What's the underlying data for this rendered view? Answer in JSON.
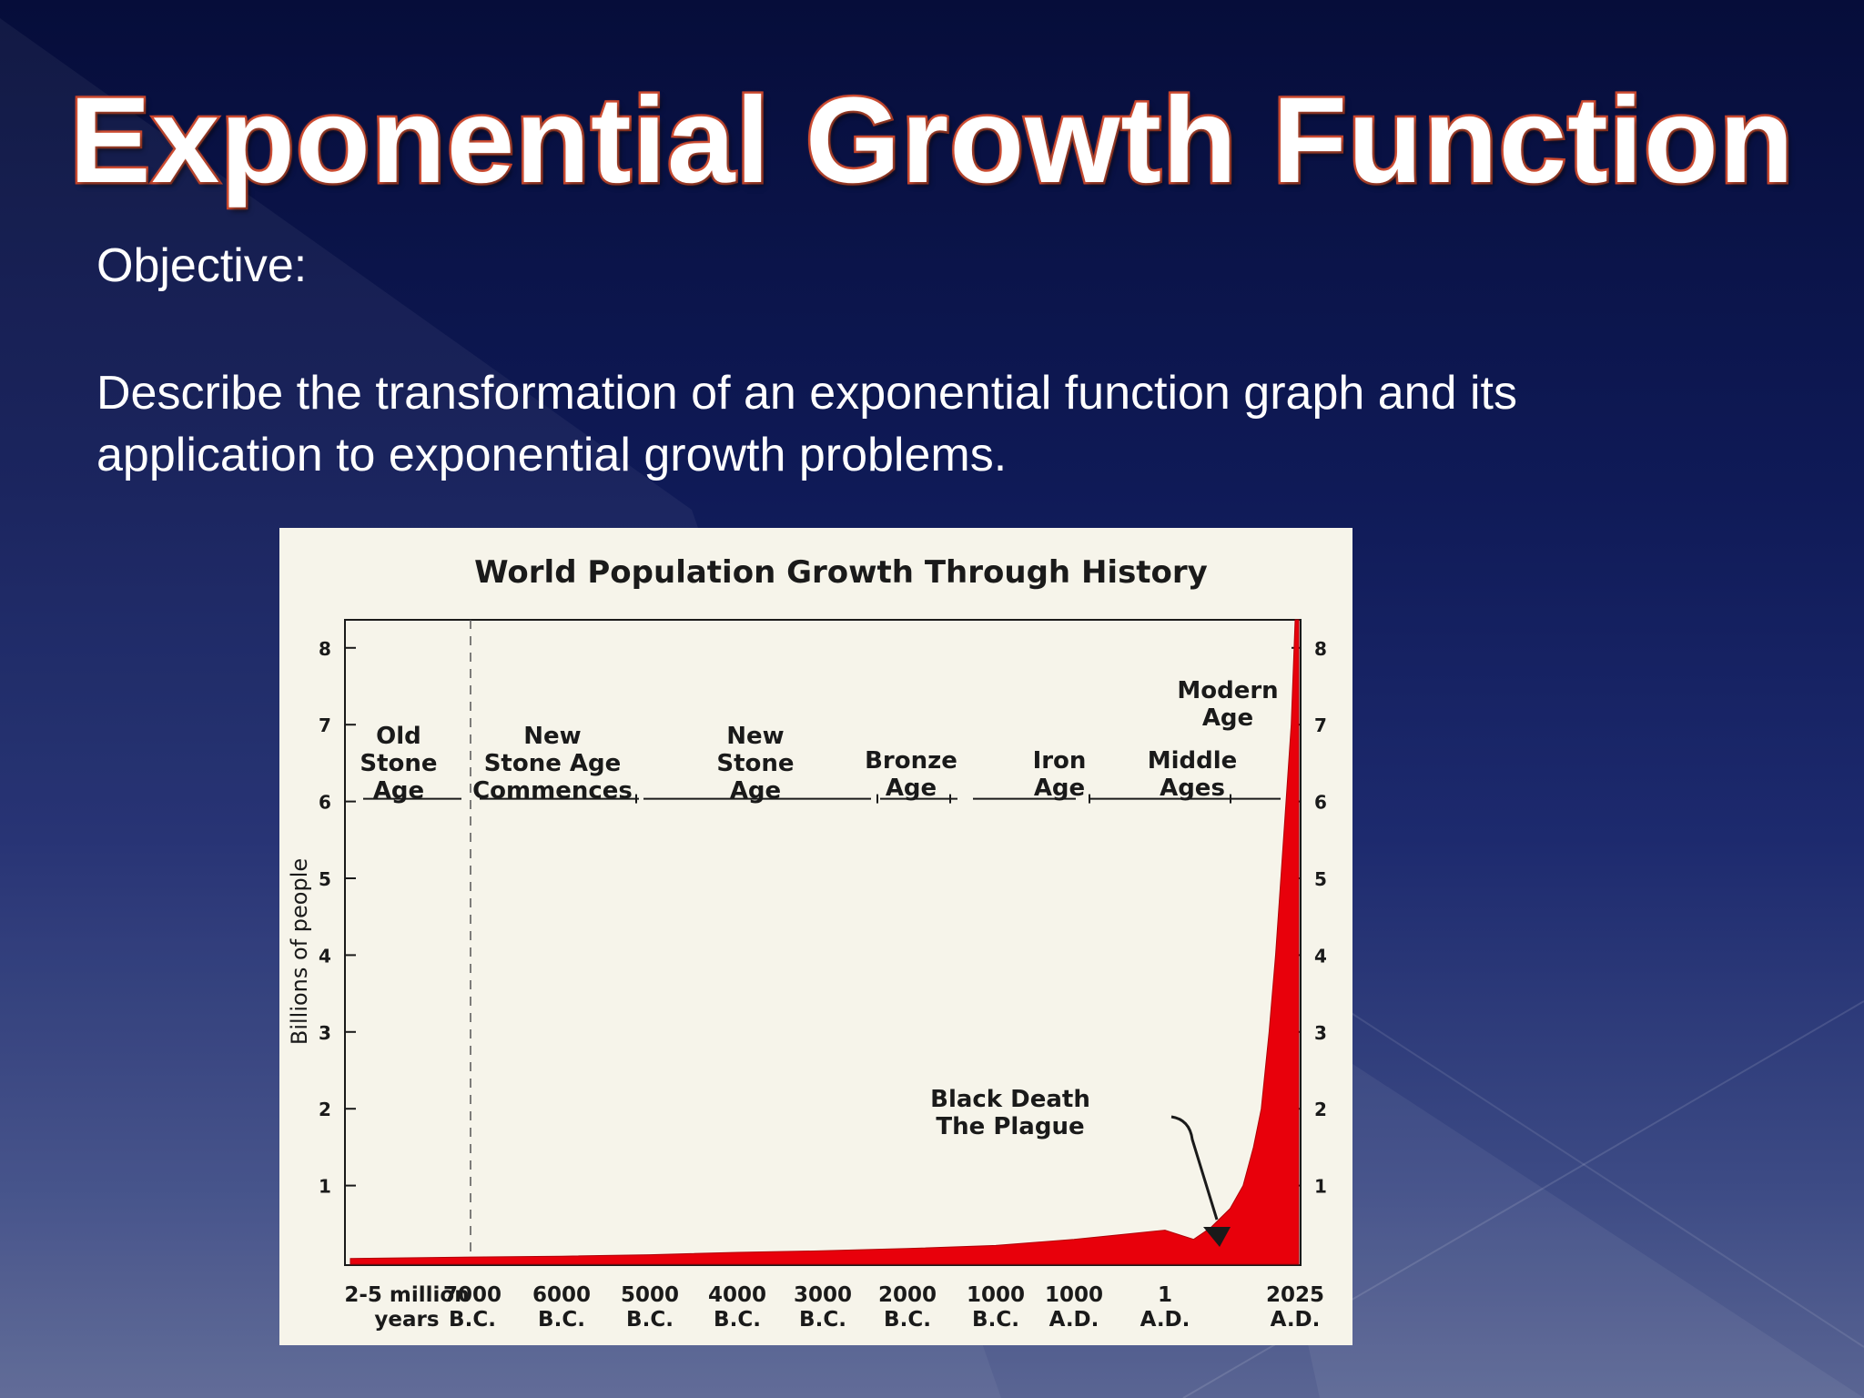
{
  "slide": {
    "title": "Exponential Growth Function",
    "objective_label": "Objective:",
    "objective_text": "Describe the transformation  of an exponential function graph  and its application to exponential growth problems."
  },
  "colors": {
    "background_top": "#060d3a",
    "background_bottom": "#5a6593",
    "title_fill": "#ffffff",
    "title_outline": "#c8432a",
    "chart_panel": "#f6f4ea",
    "area_fill": "#e8000b"
  },
  "chart_data": {
    "type": "area",
    "title": "World Population Growth Through History",
    "ylabel": "Billions of people",
    "xlabel": "",
    "ylim": [
      0,
      8.5
    ],
    "y_ticks": [
      "1",
      "2",
      "3",
      "4",
      "5",
      "6",
      "7",
      "8"
    ],
    "y_ticks_right": [
      "1",
      "2",
      "3",
      "4",
      "5",
      "6",
      "7",
      "8"
    ],
    "x_ticks": [
      {
        "top": "2-5 million",
        "bottom": "years"
      },
      {
        "top": "7000",
        "bottom": "B.C."
      },
      {
        "top": "6000",
        "bottom": "B.C."
      },
      {
        "top": "5000",
        "bottom": "B.C."
      },
      {
        "top": "4000",
        "bottom": "B.C."
      },
      {
        "top": "3000",
        "bottom": "B.C."
      },
      {
        "top": "2000",
        "bottom": "B.C."
      },
      {
        "top": "1000",
        "bottom": "B.C."
      },
      {
        "top": "1000",
        "bottom": "A.D."
      },
      {
        "top": "1",
        "bottom": "A.D."
      },
      {
        "top": "2025",
        "bottom": "A.D."
      }
    ],
    "eras": [
      {
        "lines": [
          "Old",
          "Stone",
          "Age"
        ]
      },
      {
        "lines": [
          "New",
          "Stone Age",
          "Commences"
        ]
      },
      {
        "lines": [
          "New",
          "Stone",
          "Age"
        ]
      },
      {
        "lines": [
          "Bronze",
          "Age"
        ]
      },
      {
        "lines": [
          "Iron",
          "Age"
        ]
      },
      {
        "lines": [
          "Middle",
          "Ages"
        ]
      },
      {
        "lines": [
          "Modern",
          "Age"
        ]
      }
    ],
    "annotation": {
      "lines": [
        "Black Death",
        "The Plague"
      ]
    },
    "series": [
      {
        "points": [
          [
            0,
            0.05
          ],
          [
            1,
            0.07
          ],
          [
            2,
            0.08
          ],
          [
            3,
            0.1
          ],
          [
            4,
            0.13
          ],
          [
            5,
            0.15
          ],
          [
            6,
            0.18
          ],
          [
            7,
            0.22
          ],
          [
            8,
            0.3
          ],
          [
            9,
            0.42
          ],
          [
            9.22,
            0.3
          ],
          [
            9.35,
            0.45
          ],
          [
            9.5,
            0.7
          ],
          [
            9.6,
            1.0
          ],
          [
            9.68,
            1.5
          ],
          [
            9.74,
            2.0
          ],
          [
            9.8,
            3.0
          ],
          [
            9.85,
            4.0
          ],
          [
            9.89,
            5.0
          ],
          [
            9.93,
            6.0
          ],
          [
            9.97,
            7.0
          ],
          [
            10,
            8.5
          ]
        ]
      }
    ],
    "grid": false,
    "legend": "none"
  }
}
